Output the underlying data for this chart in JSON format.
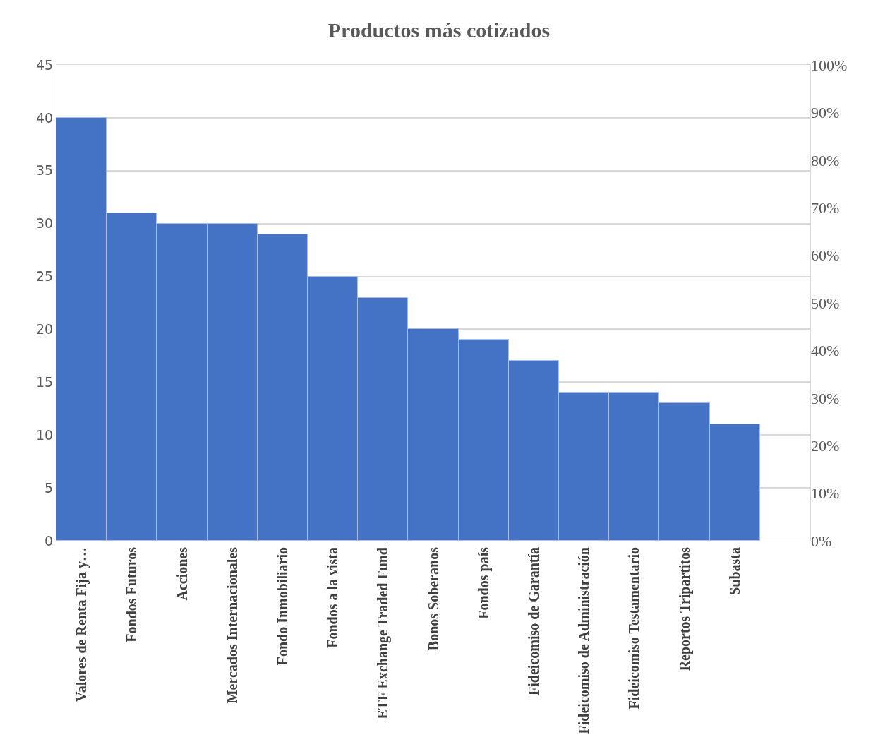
{
  "chart_data": {
    "type": "bar",
    "title": "Productos más cotizados",
    "categories": [
      "Valores de Renta Fija y…",
      "Fondos Futuros",
      "Acciones",
      "Mercados Internacionales",
      "Fondo Inmobiliario",
      "Fondos a la vista",
      "ETF Exchange Traded Fund",
      "Bonos Soberanos",
      "Fondos país",
      "Fideicomiso de Garantía",
      "Fideicomiso de Administración",
      "Fideicomiso Testamentario",
      "Reportos Tripartitos",
      "Subasta",
      null
    ],
    "values": [
      40,
      31,
      30,
      30,
      29,
      25,
      23,
      20,
      19,
      17,
      14,
      14,
      13,
      11,
      null
    ],
    "color": "#4472c4",
    "ylim": [
      0,
      45
    ],
    "yticks": [
      0,
      5,
      10,
      15,
      20,
      25,
      30,
      35,
      40,
      45
    ],
    "y2lim": [
      0,
      100
    ],
    "y2ticks": [
      {
        "value": 0,
        "label": "0%"
      },
      {
        "value": 10,
        "label": "10%"
      },
      {
        "value": 20,
        "label": "20%"
      },
      {
        "value": 30,
        "label": "30%"
      },
      {
        "value": 40,
        "label": "40%"
      },
      {
        "value": 50,
        "label": "50%"
      },
      {
        "value": 60,
        "label": "60%"
      },
      {
        "value": 70,
        "label": "70%"
      },
      {
        "value": 80,
        "label": "80%"
      },
      {
        "value": 90,
        "label": "90%"
      },
      {
        "value": 100,
        "label": "100%"
      }
    ],
    "grid": "y"
  }
}
